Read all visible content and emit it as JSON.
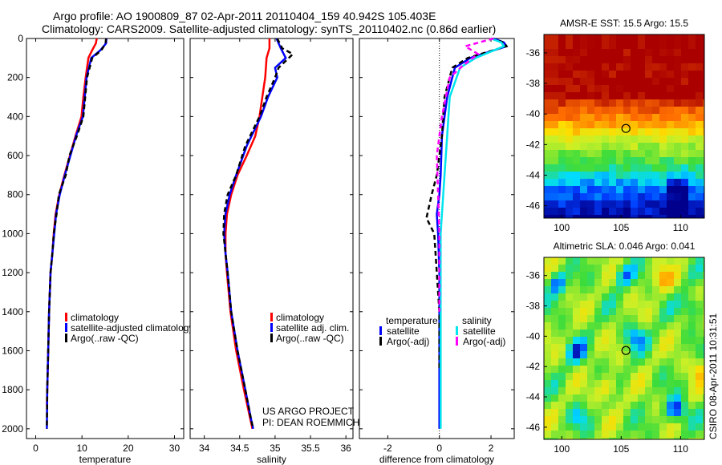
{
  "header": {
    "title_line1": "Argo profile: AO 1900809_87 02-Apr-2011 20110404_159 40.942S 105.403E",
    "title_line2": "Climatology: CARS2009. Satellite-adjusted climatology: synTS_20110402.nc (0.86d earlier)"
  },
  "credits": {
    "line1": "US ARGO PROJECT",
    "line2": "PI: DEAN ROEMMICH",
    "side": "CSIRO 08-Apr-2011 10:31:51"
  },
  "colors": {
    "climatology": "#ff0000",
    "satellite": "#0000ff",
    "argo": "#000000",
    "sal_satellite": "#00e5ee",
    "sal_argo": "#ff00ff"
  },
  "chart_data": [
    {
      "id": "temperature",
      "type": "line",
      "xlabel": "temperature",
      "ylabel": "",
      "xlim": [
        -2,
        32
      ],
      "ylim": [
        2050,
        0
      ],
      "xticks": [
        0,
        10,
        20,
        30
      ],
      "yticks": [
        0,
        200,
        400,
        600,
        800,
        1000,
        1200,
        1400,
        1600,
        1800,
        2000
      ],
      "legend": [
        "climatology",
        "satellite-adjusted climatology",
        "Argo(..raw -QC)"
      ],
      "series": [
        {
          "name": "climatology",
          "color": "#ff0000",
          "dash": false,
          "x": [
            13.2,
            13.0,
            12.2,
            11.4,
            10.8,
            10.3,
            9.9,
            8.6,
            7.4,
            6.2,
            5.1,
            4.3,
            3.9,
            3.6,
            3.2,
            2.9,
            2.7,
            2.5,
            2.4
          ],
          "y": [
            0,
            25,
            60,
            100,
            200,
            300,
            400,
            500,
            600,
            700,
            800,
            900,
            1000,
            1100,
            1200,
            1400,
            1600,
            1800,
            1880
          ]
        },
        {
          "name": "satellite-adjusted climatology",
          "color": "#0000ff",
          "dash": false,
          "x": [
            15.3,
            15.2,
            14.0,
            12.0,
            11.0,
            10.6,
            10.2,
            8.7,
            7.5,
            6.3,
            5.2,
            4.4,
            4.0,
            3.6,
            3.2,
            2.9,
            2.7,
            2.5,
            2.4
          ],
          "y": [
            0,
            25,
            60,
            100,
            200,
            300,
            400,
            500,
            600,
            700,
            800,
            900,
            1000,
            1100,
            1200,
            1400,
            1600,
            1800,
            2000
          ]
        },
        {
          "name": "Argo(..raw -QC)",
          "color": "#000000",
          "dash": true,
          "x": [
            15.2,
            15.1,
            14.2,
            12.2,
            11.1,
            10.7,
            10.3,
            8.9,
            7.3,
            6.5,
            5.0,
            4.5,
            3.9,
            3.6,
            3.2,
            2.9,
            2.7,
            2.5,
            2.4
          ],
          "y": [
            0,
            25,
            60,
            100,
            200,
            300,
            400,
            500,
            600,
            700,
            800,
            900,
            1000,
            1100,
            1200,
            1400,
            1600,
            1800,
            2000
          ]
        }
      ]
    },
    {
      "id": "salinity",
      "type": "line",
      "xlabel": "salinity",
      "ylabel": "",
      "xlim": [
        33.8,
        36.1
      ],
      "ylim": [
        2050,
        0
      ],
      "xticks": [
        34,
        34.5,
        35,
        35.5,
        36
      ],
      "xticklabels": [
        "34",
        "34.5",
        "35",
        "35.5",
        "36"
      ],
      "yticks": [
        0,
        200,
        400,
        600,
        800,
        1000,
        1200,
        1400,
        1600,
        1800,
        2000
      ],
      "legend": [
        "climatology",
        "satellite adj. clim.",
        "Argo(..raw -QC)"
      ],
      "series": [
        {
          "name": "climatology",
          "color": "#ff0000",
          "dash": false,
          "x": [
            34.92,
            34.92,
            34.88,
            34.86,
            34.82,
            34.78,
            34.72,
            34.6,
            34.47,
            34.38,
            34.32,
            34.3,
            34.3,
            34.32,
            34.37,
            34.45,
            34.56,
            34.65,
            34.68
          ],
          "y": [
            0,
            50,
            100,
            200,
            300,
            400,
            500,
            600,
            700,
            800,
            900,
            1000,
            1100,
            1200,
            1400,
            1600,
            1800,
            1950,
            2000
          ]
        },
        {
          "name": "satellite adj. clim.",
          "color": "#0000ff",
          "dash": false,
          "x": [
            35.02,
            35.08,
            35.15,
            35.0,
            35.03,
            34.9,
            34.8,
            34.6,
            34.45,
            34.36,
            34.3,
            34.28,
            34.3,
            34.33,
            34.38,
            34.47,
            34.58,
            34.66,
            34.69
          ],
          "y": [
            0,
            50,
            100,
            150,
            200,
            300,
            400,
            550,
            700,
            800,
            900,
            1000,
            1100,
            1200,
            1400,
            1600,
            1800,
            1950,
            2000
          ]
        },
        {
          "name": "Argo(..raw -QC)",
          "color": "#000000",
          "dash": true,
          "x": [
            35.03,
            35.1,
            35.25,
            35.05,
            35.0,
            34.88,
            34.78,
            34.58,
            34.45,
            34.33,
            34.28,
            34.27,
            34.3,
            34.33,
            34.38,
            34.47,
            34.58,
            34.66,
            34.69
          ],
          "y": [
            0,
            50,
            80,
            150,
            200,
            300,
            400,
            550,
            700,
            800,
            900,
            1000,
            1100,
            1200,
            1400,
            1600,
            1800,
            1950,
            2000
          ]
        }
      ]
    },
    {
      "id": "difference",
      "type": "line",
      "xlabel": "difference from climatology",
      "ylabel": "",
      "xlim": [
        -3.1,
        2.9
      ],
      "ylim": [
        2050,
        0
      ],
      "xticks": [
        -2,
        0,
        2
      ],
      "yticks": [
        0,
        200,
        400,
        600,
        800,
        1000,
        1200,
        1400,
        1600,
        1800,
        2000
      ],
      "legend_groups": [
        {
          "title": "temperature",
          "entries": [
            "satellite",
            "Argo(-adj)"
          ]
        },
        {
          "title": "salinity",
          "entries": [
            "satellite",
            "Argo(-adj)"
          ]
        }
      ],
      "series": [
        {
          "name": "temperature satellite",
          "color": "#0000ff",
          "dash": false,
          "x": [
            2.1,
            2.5,
            2.6,
            1.2,
            0.6,
            0.3,
            0.1,
            0.05,
            0.0,
            -0.1,
            -0.05,
            0.0,
            0.0,
            0.0,
            0.0,
            0.0
          ],
          "y": [
            0,
            20,
            40,
            100,
            150,
            300,
            500,
            700,
            800,
            900,
            1000,
            1200,
            1400,
            1600,
            1800,
            2000
          ]
        },
        {
          "name": "temperature Argo(-adj)",
          "color": "#000000",
          "dash": true,
          "x": [
            2.0,
            2.5,
            2.6,
            1.1,
            0.5,
            0.2,
            0.1,
            -0.1,
            -0.3,
            -0.5,
            -0.2,
            -0.1,
            0.0,
            0.0,
            0.0
          ],
          "y": [
            0,
            20,
            40,
            100,
            150,
            300,
            500,
            700,
            800,
            920,
            1000,
            1200,
            1400,
            1600,
            1700
          ]
        },
        {
          "name": "salinity satellite",
          "color": "#00e5ee",
          "dash": false,
          "x": [
            2.0,
            2.4,
            2.5,
            1.4,
            0.8,
            0.4,
            0.3,
            0.2,
            0.15,
            0.1,
            0.05,
            0.05,
            0.05,
            0.05,
            0.05
          ],
          "y": [
            0,
            20,
            40,
            100,
            150,
            300,
            500,
            700,
            800,
            900,
            1000,
            1200,
            1400,
            1600,
            2000
          ]
        },
        {
          "name": "salinity Argo(-adj)",
          "color": "#ff00ff",
          "dash": true,
          "x": [
            2.1,
            1.0,
            1.5,
            0.9,
            0.4,
            0.1,
            -0.1,
            -0.05,
            0.0,
            0.0,
            0.0
          ],
          "y": [
            0,
            40,
            80,
            140,
            200,
            400,
            600,
            800,
            1000,
            1200,
            1400
          ]
        }
      ]
    },
    {
      "id": "sst_map",
      "type": "heatmap",
      "title": "AMSR-E SST: 15.5 Argo: 15.5",
      "xlim": [
        98.5,
        112.0
      ],
      "ylim": [
        -46.8,
        -34.8
      ],
      "xticks": [
        100,
        105,
        110
      ],
      "yticks": [
        -36,
        -38,
        -40,
        -42,
        -44,
        -46
      ],
      "marker": {
        "lon": 105.403,
        "lat": -40.942
      }
    },
    {
      "id": "sla_map",
      "type": "heatmap",
      "title": "Altimetric SLA: 0.046 Argo: 0.041",
      "xlim": [
        98.5,
        112.0
      ],
      "ylim": [
        -46.8,
        -34.8
      ],
      "xticks": [
        100,
        105,
        110
      ],
      "yticks": [
        -36,
        -38,
        -40,
        -42,
        -44,
        -46
      ],
      "marker": {
        "lon": 105.403,
        "lat": -40.942
      }
    }
  ]
}
